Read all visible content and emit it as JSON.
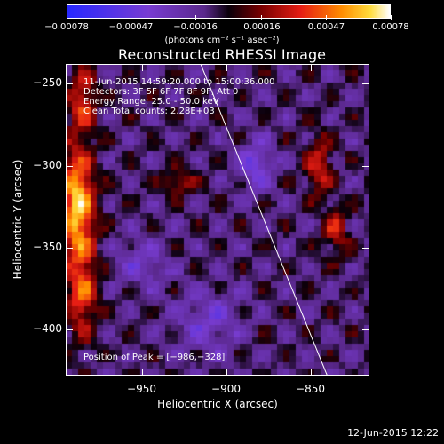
{
  "colorbar": {
    "tick_labels": [
      "−0.00078",
      "−0.00047",
      "−0.00016",
      "0.00016",
      "0.00047",
      "0.00078"
    ],
    "tick_values": [
      -0.00078,
      -0.00047,
      -0.00016,
      0.00016,
      0.00047,
      0.00078
    ],
    "range": [
      -0.00078,
      0.00078
    ],
    "units": "(photons cm⁻² s⁻¹ asec⁻²)"
  },
  "chart_data": {
    "type": "heatmap",
    "title": "Reconstructed RHESSI Image",
    "xlabel": "Heliocentric X (arcsec)",
    "ylabel": "Heliocentric Y (arcsec)",
    "xlim": [
      -995,
      -815
    ],
    "ylim": [
      -428,
      -238
    ],
    "x_ticks": [
      -950,
      -900,
      -850
    ],
    "y_ticks": [
      -250,
      -300,
      -350,
      -400
    ],
    "x_tick_labels": [
      "−950",
      "−900",
      "−850"
    ],
    "y_tick_labels": [
      "−250",
      "−300",
      "−350",
      "−400"
    ],
    "annotations": [
      "11-Jun-2015 14:59:20.000 to 15:00:36.000",
      "Detectors: 3F 5F 6F 7F 8F 9F, Att 0",
      "Energy Range: 25.0 - 50.0 keV",
      "Clean     Total counts: 2.28E+03"
    ],
    "peak_label": "Position of Peak = [−986,−328]",
    "peak": [
      -986,
      -328
    ],
    "limb_line": [
      [
        -915,
        -238
      ],
      [
        -840,
        -428
      ]
    ],
    "features": [
      {
        "x": -988,
        "y": -325,
        "sx": 10,
        "sy": 35,
        "amp": 1.0
      },
      {
        "x": -985,
        "y": -260,
        "sx": 8,
        "sy": 20,
        "amp": 0.55
      },
      {
        "x": -985,
        "y": -380,
        "sx": 9,
        "sy": 25,
        "amp": 0.6
      },
      {
        "x": -845,
        "y": -300,
        "sx": 8,
        "sy": 18,
        "amp": 0.5
      },
      {
        "x": -835,
        "y": -340,
        "sx": 8,
        "sy": 15,
        "amp": 0.45
      },
      {
        "x": -928,
        "y": -310,
        "sx": 10,
        "sy": 8,
        "amp": 0.45
      },
      {
        "x": -882,
        "y": -300,
        "sx": 10,
        "sy": 15,
        "amp": -0.45
      },
      {
        "x": -910,
        "y": -395,
        "sx": 18,
        "sy": 18,
        "amp": -0.35
      },
      {
        "x": -950,
        "y": -360,
        "sx": 15,
        "sy": 15,
        "amp": -0.3
      }
    ]
  },
  "datestamp": "12-Jun-2015 12:22"
}
